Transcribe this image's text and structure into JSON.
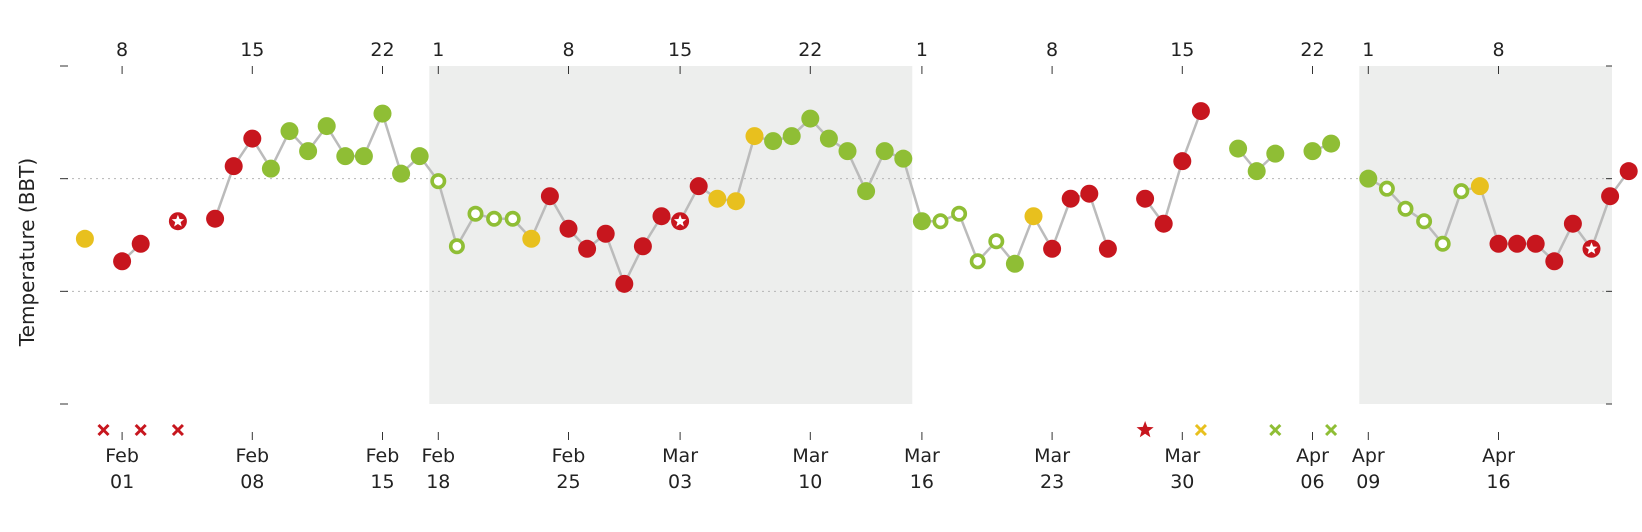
{
  "chart_data": {
    "type": "line",
    "ylabel": "Temperature (BBT)",
    "x_start": "2018-01-31",
    "x_end": "2018-04-22",
    "cycles": [
      {
        "start": "2018-02-18",
        "end": "2018-03-15"
      },
      {
        "start": "2018-04-09",
        "end": "2018-04-22"
      }
    ],
    "top_ticks": [
      {
        "date": "2018-02-01",
        "label": "8"
      },
      {
        "date": "2018-02-08",
        "label": "15"
      },
      {
        "date": "2018-02-15",
        "label": "22"
      },
      {
        "date": "2018-02-18",
        "label": "1"
      },
      {
        "date": "2018-02-25",
        "label": "8"
      },
      {
        "date": "2018-03-03",
        "label": "15"
      },
      {
        "date": "2018-03-10",
        "label": "22"
      },
      {
        "date": "2018-03-16",
        "label": "1"
      },
      {
        "date": "2018-03-23",
        "label": "8"
      },
      {
        "date": "2018-03-30",
        "label": "15"
      },
      {
        "date": "2018-04-06",
        "label": "22"
      },
      {
        "date": "2018-04-09",
        "label": "1"
      },
      {
        "date": "2018-04-16",
        "label": "8"
      }
    ],
    "bottom_ticks": [
      {
        "date": "2018-02-01",
        "month": "Feb",
        "day": "01"
      },
      {
        "date": "2018-02-08",
        "month": "Feb",
        "day": "08"
      },
      {
        "date": "2018-02-15",
        "month": "Feb",
        "day": "15"
      },
      {
        "date": "2018-02-18",
        "month": "Feb",
        "day": "18"
      },
      {
        "date": "2018-02-25",
        "month": "Feb",
        "day": "25"
      },
      {
        "date": "2018-03-03",
        "month": "Mar",
        "day": "03"
      },
      {
        "date": "2018-03-10",
        "month": "Mar",
        "day": "10"
      },
      {
        "date": "2018-03-16",
        "month": "Mar",
        "day": "16"
      },
      {
        "date": "2018-03-23",
        "month": "Mar",
        "day": "23"
      },
      {
        "date": "2018-03-30",
        "month": "Mar",
        "day": "30"
      },
      {
        "date": "2018-04-06",
        "month": "Apr",
        "day": "06"
      },
      {
        "date": "2018-04-09",
        "month": "Apr",
        "day": "09"
      },
      {
        "date": "2018-04-16",
        "month": "Apr",
        "day": "16"
      }
    ],
    "gridlines_y": [
      0.3,
      0.75
    ],
    "y_tick_values": [
      -0.15,
      0.3,
      0.75,
      1.2
    ],
    "ylim": [
      -0.15,
      1.2
    ],
    "colors": {
      "red": "#c7161e",
      "green": "#8fbe35",
      "yellow": "#e8c01e",
      "line": "#bbbbbb",
      "shade": "#edeeed"
    },
    "points": [
      {
        "date": "2018-01-30",
        "y": 0.51,
        "color": "yellow",
        "style": "filled"
      },
      {
        "date": "2018-02-01",
        "y": 0.42,
        "color": "red",
        "style": "filled"
      },
      {
        "date": "2018-02-02",
        "y": 0.49,
        "color": "red",
        "style": "filled"
      },
      {
        "date": "2018-02-04",
        "y": 0.58,
        "color": "red",
        "style": "star"
      },
      {
        "date": "2018-02-06",
        "y": 0.59,
        "color": "red",
        "style": "filled"
      },
      {
        "date": "2018-02-07",
        "y": 0.8,
        "color": "red",
        "style": "filled"
      },
      {
        "date": "2018-02-08",
        "y": 0.91,
        "color": "red",
        "style": "filled"
      },
      {
        "date": "2018-02-09",
        "y": 0.79,
        "color": "green",
        "style": "filled"
      },
      {
        "date": "2018-02-10",
        "y": 0.94,
        "color": "green",
        "style": "filled"
      },
      {
        "date": "2018-02-11",
        "y": 0.86,
        "color": "green",
        "style": "filled"
      },
      {
        "date": "2018-02-12",
        "y": 0.96,
        "color": "green",
        "style": "filled"
      },
      {
        "date": "2018-02-13",
        "y": 0.84,
        "color": "green",
        "style": "filled"
      },
      {
        "date": "2018-02-14",
        "y": 0.84,
        "color": "green",
        "style": "filled"
      },
      {
        "date": "2018-02-15",
        "y": 1.01,
        "color": "green",
        "style": "filled"
      },
      {
        "date": "2018-02-16",
        "y": 0.77,
        "color": "green",
        "style": "filled"
      },
      {
        "date": "2018-02-17",
        "y": 0.84,
        "color": "green",
        "style": "filled"
      },
      {
        "date": "2018-02-18",
        "y": 0.74,
        "color": "green",
        "style": "hollow"
      },
      {
        "date": "2018-02-19",
        "y": 0.48,
        "color": "green",
        "style": "hollow"
      },
      {
        "date": "2018-02-20",
        "y": 0.61,
        "color": "green",
        "style": "hollow"
      },
      {
        "date": "2018-02-21",
        "y": 0.59,
        "color": "green",
        "style": "hollow"
      },
      {
        "date": "2018-02-22",
        "y": 0.59,
        "color": "green",
        "style": "hollow"
      },
      {
        "date": "2018-02-23",
        "y": 0.51,
        "color": "yellow",
        "style": "filled"
      },
      {
        "date": "2018-02-24",
        "y": 0.68,
        "color": "red",
        "style": "filled"
      },
      {
        "date": "2018-02-25",
        "y": 0.55,
        "color": "red",
        "style": "filled"
      },
      {
        "date": "2018-02-26",
        "y": 0.47,
        "color": "red",
        "style": "filled"
      },
      {
        "date": "2018-02-27",
        "y": 0.53,
        "color": "red",
        "style": "filled"
      },
      {
        "date": "2018-02-28",
        "y": 0.33,
        "color": "red",
        "style": "filled"
      },
      {
        "date": "2018-03-01",
        "y": 0.48,
        "color": "red",
        "style": "filled"
      },
      {
        "date": "2018-03-02",
        "y": 0.6,
        "color": "red",
        "style": "filled"
      },
      {
        "date": "2018-03-03",
        "y": 0.58,
        "color": "red",
        "style": "star"
      },
      {
        "date": "2018-03-04",
        "y": 0.72,
        "color": "red",
        "style": "filled"
      },
      {
        "date": "2018-03-05",
        "y": 0.67,
        "color": "yellow",
        "style": "filled"
      },
      {
        "date": "2018-03-06",
        "y": 0.66,
        "color": "yellow",
        "style": "filled"
      },
      {
        "date": "2018-03-07",
        "y": 0.92,
        "color": "yellow",
        "style": "filled"
      },
      {
        "date": "2018-03-08",
        "y": 0.9,
        "color": "green",
        "style": "filled"
      },
      {
        "date": "2018-03-09",
        "y": 0.92,
        "color": "green",
        "style": "filled"
      },
      {
        "date": "2018-03-10",
        "y": 0.99,
        "color": "green",
        "style": "filled"
      },
      {
        "date": "2018-03-11",
        "y": 0.91,
        "color": "green",
        "style": "filled"
      },
      {
        "date": "2018-03-12",
        "y": 0.86,
        "color": "green",
        "style": "filled"
      },
      {
        "date": "2018-03-13",
        "y": 0.7,
        "color": "green",
        "style": "filled"
      },
      {
        "date": "2018-03-14",
        "y": 0.86,
        "color": "green",
        "style": "filled"
      },
      {
        "date": "2018-03-15",
        "y": 0.83,
        "color": "green",
        "style": "filled"
      },
      {
        "date": "2018-03-16",
        "y": 0.58,
        "color": "green",
        "style": "filled"
      },
      {
        "date": "2018-03-17",
        "y": 0.58,
        "color": "green",
        "style": "hollow"
      },
      {
        "date": "2018-03-18",
        "y": 0.61,
        "color": "green",
        "style": "hollow"
      },
      {
        "date": "2018-03-19",
        "y": 0.42,
        "color": "green",
        "style": "hollow"
      },
      {
        "date": "2018-03-20",
        "y": 0.5,
        "color": "green",
        "style": "hollow"
      },
      {
        "date": "2018-03-21",
        "y": 0.41,
        "color": "green",
        "style": "filled"
      },
      {
        "date": "2018-03-22",
        "y": 0.6,
        "color": "yellow",
        "style": "filled"
      },
      {
        "date": "2018-03-23",
        "y": 0.47,
        "color": "red",
        "style": "filled"
      },
      {
        "date": "2018-03-24",
        "y": 0.67,
        "color": "red",
        "style": "filled"
      },
      {
        "date": "2018-03-25",
        "y": 0.69,
        "color": "red",
        "style": "filled"
      },
      {
        "date": "2018-03-26",
        "y": 0.47,
        "color": "red",
        "style": "filled"
      },
      {
        "date": "2018-03-28",
        "y": 0.67,
        "color": "red",
        "style": "filled"
      },
      {
        "date": "2018-03-29",
        "y": 0.57,
        "color": "red",
        "style": "filled"
      },
      {
        "date": "2018-03-30",
        "y": 0.82,
        "color": "red",
        "style": "filled"
      },
      {
        "date": "2018-03-31",
        "y": 1.02,
        "color": "red",
        "style": "filled"
      },
      {
        "date": "2018-04-02",
        "y": 0.87,
        "color": "green",
        "style": "filled"
      },
      {
        "date": "2018-04-03",
        "y": 0.78,
        "color": "green",
        "style": "filled"
      },
      {
        "date": "2018-04-04",
        "y": 0.85,
        "color": "green",
        "style": "filled"
      },
      {
        "date": "2018-04-06",
        "y": 0.86,
        "color": "green",
        "style": "filled"
      },
      {
        "date": "2018-04-07",
        "y": 0.89,
        "color": "green",
        "style": "filled"
      },
      {
        "date": "2018-04-09",
        "y": 0.75,
        "color": "green",
        "style": "filled"
      },
      {
        "date": "2018-04-10",
        "y": 0.71,
        "color": "green",
        "style": "hollow"
      },
      {
        "date": "2018-04-11",
        "y": 0.63,
        "color": "green",
        "style": "hollow"
      },
      {
        "date": "2018-04-12",
        "y": 0.58,
        "color": "green",
        "style": "hollow"
      },
      {
        "date": "2018-04-13",
        "y": 0.49,
        "color": "green",
        "style": "hollow"
      },
      {
        "date": "2018-04-14",
        "y": 0.7,
        "color": "green",
        "style": "hollow"
      },
      {
        "date": "2018-04-15",
        "y": 0.72,
        "color": "yellow",
        "style": "filled"
      },
      {
        "date": "2018-04-16",
        "y": 0.49,
        "color": "red",
        "style": "filled"
      },
      {
        "date": "2018-04-17",
        "y": 0.49,
        "color": "red",
        "style": "filled"
      },
      {
        "date": "2018-04-18",
        "y": 0.49,
        "color": "red",
        "style": "filled"
      },
      {
        "date": "2018-04-19",
        "y": 0.42,
        "color": "red",
        "style": "filled"
      },
      {
        "date": "2018-04-20",
        "y": 0.57,
        "color": "red",
        "style": "filled"
      },
      {
        "date": "2018-04-21",
        "y": 0.47,
        "color": "red",
        "style": "star"
      },
      {
        "date": "2018-04-22",
        "y": 0.68,
        "color": "red",
        "style": "filled"
      },
      {
        "date": "2018-04-23",
        "y": 0.78,
        "color": "red",
        "style": "filled"
      }
    ],
    "bottom_markers": [
      {
        "date": "2018-01-31",
        "color": "red",
        "symbol": "x"
      },
      {
        "date": "2018-02-02",
        "color": "red",
        "symbol": "x"
      },
      {
        "date": "2018-02-04",
        "color": "red",
        "symbol": "x"
      },
      {
        "date": "2018-03-28",
        "color": "red",
        "symbol": "star"
      },
      {
        "date": "2018-03-31",
        "color": "yellow",
        "symbol": "x"
      },
      {
        "date": "2018-04-04",
        "color": "green",
        "symbol": "x"
      },
      {
        "date": "2018-04-07",
        "color": "green",
        "symbol": "x"
      }
    ]
  }
}
